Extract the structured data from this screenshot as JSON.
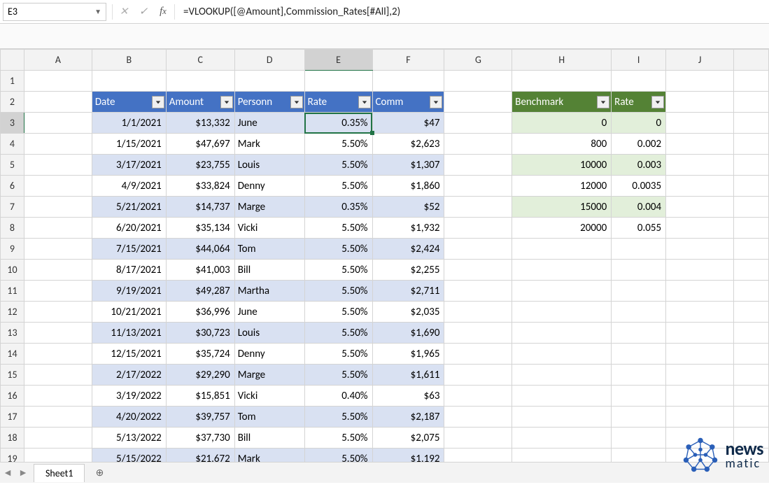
{
  "name_box": "E3",
  "formula": "=VLOOKUP([@Amount],Commission_Rates[#All],2)",
  "columns": [
    "A",
    "B",
    "C",
    "D",
    "E",
    "F",
    "G",
    "H",
    "I",
    "J",
    ""
  ],
  "row_numbers": [
    1,
    2,
    3,
    4,
    5,
    6,
    7,
    8,
    9,
    10,
    11,
    12,
    13,
    14,
    15,
    16,
    17,
    18,
    19
  ],
  "selected": {
    "col": "E",
    "row": 3
  },
  "main_table": {
    "headers": [
      "Date",
      "Amount",
      "Personn",
      "Rate",
      "Comm"
    ],
    "header_bg": "#4472c4",
    "header_fg": "#ffffff",
    "band_even_bg": "#d9e1f2",
    "band_odd_bg": "#ffffff",
    "rows": [
      {
        "date": "1/1/2021",
        "amount": "$13,332",
        "person": "June",
        "rate": "0.35%",
        "comm": "$47"
      },
      {
        "date": "1/15/2021",
        "amount": "$47,697",
        "person": "Mark",
        "rate": "5.50%",
        "comm": "$2,623"
      },
      {
        "date": "3/17/2021",
        "amount": "$23,755",
        "person": "Louis",
        "rate": "5.50%",
        "comm": "$1,307"
      },
      {
        "date": "4/9/2021",
        "amount": "$33,824",
        "person": "Denny",
        "rate": "5.50%",
        "comm": "$1,860"
      },
      {
        "date": "5/21/2021",
        "amount": "$14,737",
        "person": "Marge",
        "rate": "0.35%",
        "comm": "$52"
      },
      {
        "date": "6/20/2021",
        "amount": "$35,134",
        "person": "Vicki",
        "rate": "5.50%",
        "comm": "$1,932"
      },
      {
        "date": "7/15/2021",
        "amount": "$44,064",
        "person": "Tom",
        "rate": "5.50%",
        "comm": "$2,424"
      },
      {
        "date": "8/17/2021",
        "amount": "$41,003",
        "person": "Bill",
        "rate": "5.50%",
        "comm": "$2,255"
      },
      {
        "date": "9/19/2021",
        "amount": "$49,287",
        "person": "Martha",
        "rate": "5.50%",
        "comm": "$2,711"
      },
      {
        "date": "10/21/2021",
        "amount": "$36,996",
        "person": "June",
        "rate": "5.50%",
        "comm": "$2,035"
      },
      {
        "date": "11/13/2021",
        "amount": "$30,723",
        "person": "Louis",
        "rate": "5.50%",
        "comm": "$1,690"
      },
      {
        "date": "12/15/2021",
        "amount": "$35,724",
        "person": "Denny",
        "rate": "5.50%",
        "comm": "$1,965"
      },
      {
        "date": "2/17/2022",
        "amount": "$29,290",
        "person": "Marge",
        "rate": "5.50%",
        "comm": "$1,611"
      },
      {
        "date": "3/19/2022",
        "amount": "$15,851",
        "person": "Vicki",
        "rate": "0.40%",
        "comm": "$63"
      },
      {
        "date": "4/20/2022",
        "amount": "$39,757",
        "person": "Tom",
        "rate": "5.50%",
        "comm": "$2,187"
      },
      {
        "date": "5/13/2022",
        "amount": "$37,730",
        "person": "Bill",
        "rate": "5.50%",
        "comm": "$2,075"
      },
      {
        "date": "5/15/2022",
        "amount": "$21,672",
        "person": "Mark",
        "rate": "5.50%",
        "comm": "$1,192"
      }
    ]
  },
  "rates_table": {
    "headers": [
      "Benchmark",
      "Rate"
    ],
    "header_bg": "#548235",
    "header_fg": "#ffffff",
    "band_even_bg": "#e2efda",
    "band_odd_bg": "#ffffff",
    "rows": [
      {
        "benchmark": "0",
        "rate": "0"
      },
      {
        "benchmark": "800",
        "rate": "0.002"
      },
      {
        "benchmark": "10000",
        "rate": "0.003"
      },
      {
        "benchmark": "12000",
        "rate": "0.0035"
      },
      {
        "benchmark": "15000",
        "rate": "0.004"
      },
      {
        "benchmark": "20000",
        "rate": "0.055"
      }
    ]
  },
  "sheet_tab": "Sheet1",
  "watermark": {
    "line1": "news",
    "line2": "matic"
  }
}
